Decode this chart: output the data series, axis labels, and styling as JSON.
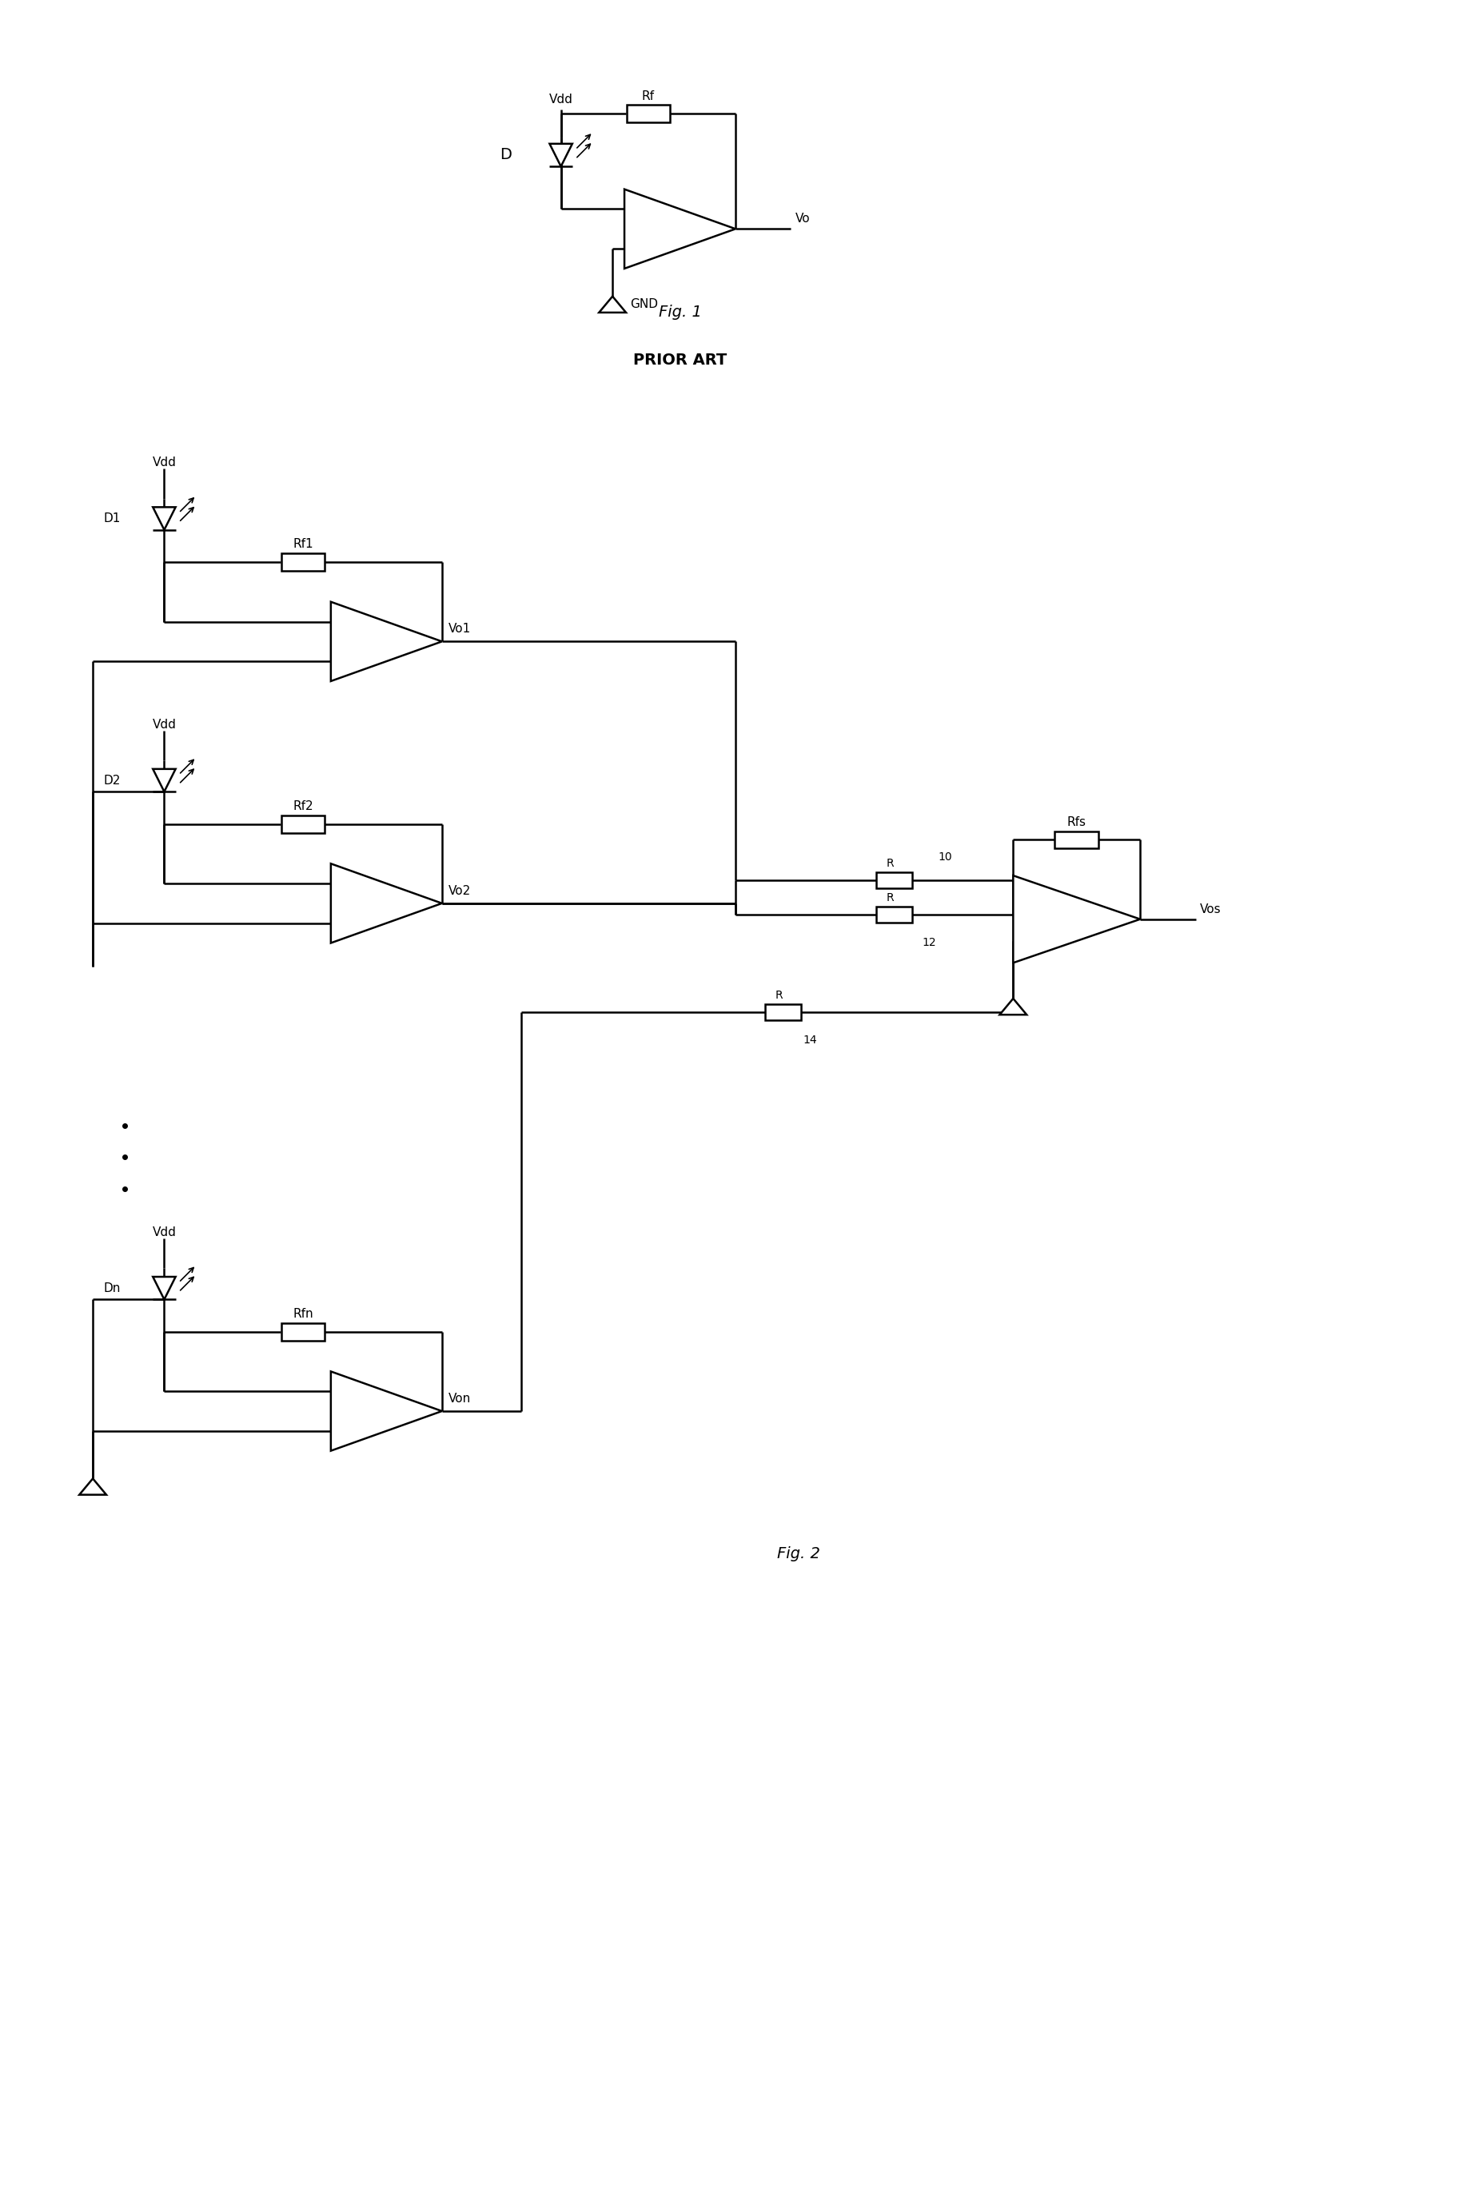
{
  "bg_color": "#ffffff",
  "line_color": "#000000",
  "line_width": 1.8,
  "fig1_caption": "Fig. 1",
  "fig1_subcaption": "PRIOR ART",
  "fig2_caption": "Fig. 2",
  "font_size_label": 11,
  "font_size_caption": 14
}
